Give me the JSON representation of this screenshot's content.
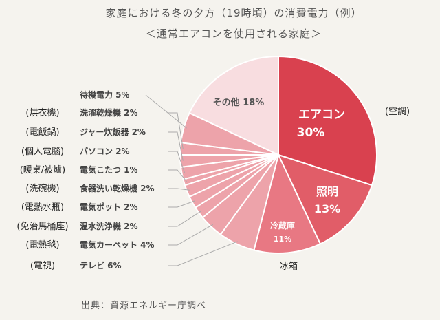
{
  "chart_data": {
    "type": "pie",
    "title": "家庭における冬の夕方（19時頃）の消費電力（例）",
    "subtitle": "＜通常エアコンを使用される家庭＞",
    "source": "出典：資源エネルギー庁調べ",
    "slices": [
      {
        "label": "エアコン",
        "value": 30,
        "value_label": "30%",
        "note": "(空調)",
        "color": "#d9414f"
      },
      {
        "label": "照明",
        "value": 13,
        "value_label": "13%",
        "color": "#e15d68"
      },
      {
        "label": "冷蔵庫",
        "value": 11,
        "value_label": "11%",
        "note": "冰箱",
        "color": "#e87883"
      },
      {
        "label": "テレビ",
        "value": 6,
        "value_label": "6%",
        "note": "(電視)",
        "color": "#eda3aa"
      },
      {
        "label": "電気カーペット",
        "value": 4,
        "value_label": "4%",
        "note": "(電熱毯)",
        "color": "#eda3aa"
      },
      {
        "label": "温水洗浄機",
        "value": 2,
        "value_label": "2%",
        "note": "(免治馬桶座)",
        "color": "#eda3aa"
      },
      {
        "label": "電気ポット",
        "value": 2,
        "value_label": "2%",
        "note": "(電熱水瓶)",
        "color": "#eda3aa"
      },
      {
        "label": "食器洗い乾燥機",
        "value": 2,
        "value_label": "2%",
        "note": "(洗碗機)",
        "color": "#eda3aa"
      },
      {
        "label": "電気こたつ",
        "value": 1,
        "value_label": "1%",
        "note": "(暖桌/被爐)",
        "color": "#eda3aa"
      },
      {
        "label": "パソコン",
        "value": 2,
        "value_label": "2%",
        "note": "(個人電腦)",
        "color": "#eda3aa"
      },
      {
        "label": "ジャー炊飯器",
        "value": 2,
        "value_label": "2%",
        "note": "(電飯鍋)",
        "color": "#eda3aa"
      },
      {
        "label": "洗濯乾燥機",
        "value": 2,
        "value_label": "2%",
        "note": "(烘衣機)",
        "color": "#eda3aa"
      },
      {
        "label": "待機電力",
        "value": 5,
        "value_label": "5%",
        "color": "#eda3aa"
      },
      {
        "label": "その他",
        "value": 18,
        "value_label": "18%",
        "color": "#f8dde0"
      }
    ]
  }
}
